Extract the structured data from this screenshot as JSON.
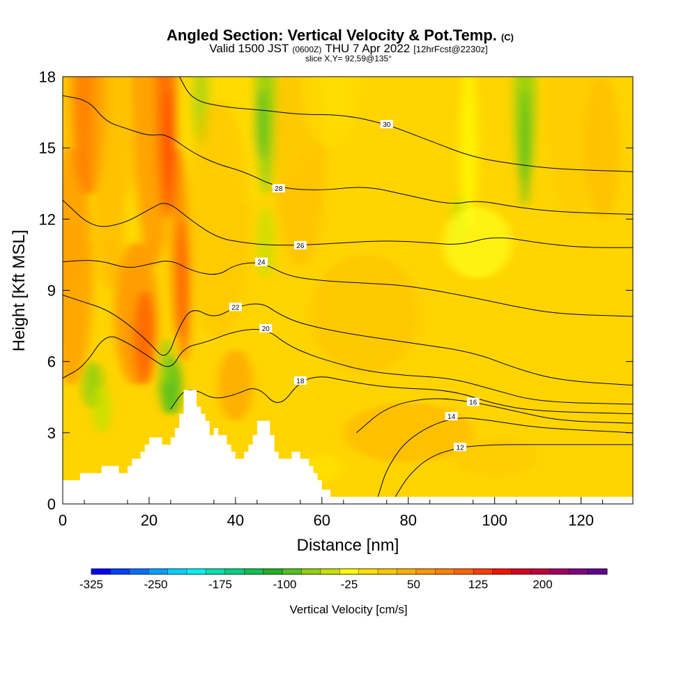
{
  "chart_data": {
    "type": "heatmap",
    "title_main": "Angled Section: Vertical Velocity & Pot.Temp.",
    "title_suffix": "(C)",
    "subtitle_a": "Valid 1500 JST",
    "subtitle_b": "(0600Z)",
    "subtitle_c": "THU 7 Apr 2022",
    "subtitle_d": "[12hrFcst@2230z]",
    "slice_note": "slice X,Y= 92,59@135°",
    "xlabel": "Distance [nm]",
    "ylabel": "Height [Kft MSL]",
    "xlim": [
      0,
      132
    ],
    "ylim": [
      0,
      18
    ],
    "xticks": [
      "0",
      "20",
      "40",
      "60",
      "80",
      "100",
      "120"
    ],
    "xtick_values": [
      0,
      20,
      40,
      60,
      80,
      100,
      120
    ],
    "yticks": [
      "0",
      "3",
      "6",
      "9",
      "12",
      "15",
      "18"
    ],
    "ytick_values": [
      0,
      3,
      6,
      9,
      12,
      15,
      18
    ],
    "colorbar": {
      "label": "Vertical Velocity [cm/s]",
      "tick_labels": [
        "-325",
        "-250",
        "-175",
        "-100",
        "-25",
        "50",
        "125",
        "200"
      ],
      "tick_values": [
        -325,
        -250,
        -175,
        -100,
        -25,
        50,
        125,
        200
      ],
      "min": -325,
      "max": 275,
      "colors": [
        "#0000ff",
        "#0040ff",
        "#0070ff",
        "#00a0ff",
        "#00d0ff",
        "#00f0f0",
        "#00e0b0",
        "#00d080",
        "#10c050",
        "#20b020",
        "#50c020",
        "#90d010",
        "#c8e000",
        "#ffff00",
        "#ffe000",
        "#ffc800",
        "#ffb000",
        "#ff9800",
        "#ff8000",
        "#ff6400",
        "#ff3c00",
        "#f01400",
        "#d80020",
        "#c00040",
        "#a00060",
        "#800080",
        "#600090"
      ]
    },
    "terrain": [
      [
        0,
        1
      ],
      [
        4,
        1
      ],
      [
        4,
        1.3
      ],
      [
        9,
        1.3
      ],
      [
        9,
        1.6
      ],
      [
        13,
        1.6
      ],
      [
        13,
        1.3
      ],
      [
        15,
        1.3
      ],
      [
        15,
        1.6
      ],
      [
        16,
        1.6
      ],
      [
        16,
        1.9
      ],
      [
        18,
        1.9
      ],
      [
        18,
        2.2
      ],
      [
        19,
        2.2
      ],
      [
        19,
        2.5
      ],
      [
        20,
        2.5
      ],
      [
        20,
        2.8
      ],
      [
        23,
        2.8
      ],
      [
        23,
        2.5
      ],
      [
        25,
        2.5
      ],
      [
        25,
        2.8
      ],
      [
        26,
        2.8
      ],
      [
        26,
        3.2
      ],
      [
        27,
        3.2
      ],
      [
        27,
        3.8
      ],
      [
        28,
        3.8
      ],
      [
        28,
        4.8
      ],
      [
        31,
        4.8
      ],
      [
        31,
        4.1
      ],
      [
        32,
        4.1
      ],
      [
        32,
        3.8
      ],
      [
        33,
        3.8
      ],
      [
        33,
        3.5
      ],
      [
        34,
        3.5
      ],
      [
        34,
        2.9
      ],
      [
        35,
        2.9
      ],
      [
        35,
        3.2
      ],
      [
        36,
        3.2
      ],
      [
        36,
        2.9
      ],
      [
        38,
        2.9
      ],
      [
        38,
        2.5
      ],
      [
        39,
        2.5
      ],
      [
        39,
        2.2
      ],
      [
        40,
        2.2
      ],
      [
        40,
        1.9
      ],
      [
        42,
        1.9
      ],
      [
        42,
        2.2
      ],
      [
        43,
        2.2
      ],
      [
        43,
        2.5
      ],
      [
        44,
        2.5
      ],
      [
        44,
        2.9
      ],
      [
        45,
        2.9
      ],
      [
        45,
        3.5
      ],
      [
        48,
        3.5
      ],
      [
        48,
        2.9
      ],
      [
        49,
        2.9
      ],
      [
        49,
        2.2
      ],
      [
        50,
        2.2
      ],
      [
        50,
        1.9
      ],
      [
        53,
        1.9
      ],
      [
        53,
        2.2
      ],
      [
        55,
        2.2
      ],
      [
        55,
        1.9
      ],
      [
        57,
        1.9
      ],
      [
        57,
        1.6
      ],
      [
        58,
        1.6
      ],
      [
        58,
        1.3
      ],
      [
        59,
        1.3
      ],
      [
        59,
        1
      ],
      [
        60,
        1
      ],
      [
        60,
        0.6
      ],
      [
        62,
        0.6
      ],
      [
        62,
        0.3
      ],
      [
        132,
        0.3
      ]
    ],
    "theta_contours": [
      {
        "label": "12",
        "points": [
          [
            77,
            0.3
          ],
          [
            80,
            1.2
          ],
          [
            85,
            2.0
          ],
          [
            92,
            2.4
          ],
          [
            100,
            2.5
          ],
          [
            110,
            2.5
          ],
          [
            132,
            2.5
          ]
        ]
      },
      {
        "label": "14",
        "points": [
          [
            73,
            0.3
          ],
          [
            75,
            1.5
          ],
          [
            80,
            2.8
          ],
          [
            90,
            3.7
          ],
          [
            100,
            3.5
          ],
          [
            110,
            3.2
          ],
          [
            132,
            3.0
          ]
        ]
      },
      {
        "label": "16",
        "points": [
          [
            68,
            3.0
          ],
          [
            75,
            4.1
          ],
          [
            85,
            4.5
          ],
          [
            95,
            4.3
          ],
          [
            105,
            3.9
          ],
          [
            115,
            3.5
          ],
          [
            132,
            3.4
          ]
        ]
      },
      {
        "label": "18",
        "points": [
          [
            25,
            4.0
          ],
          [
            28,
            4.8
          ],
          [
            31,
            4.8
          ],
          [
            35,
            4.4
          ],
          [
            40,
            4.6
          ],
          [
            45,
            5.0
          ],
          [
            50,
            4.0
          ],
          [
            55,
            5.2
          ],
          [
            60,
            5.4
          ],
          [
            65,
            5.2
          ],
          [
            75,
            4.9
          ],
          [
            90,
            4.8
          ],
          [
            100,
            4.2
          ],
          [
            110,
            3.9
          ],
          [
            132,
            3.8
          ]
        ]
      },
      {
        "label": "20",
        "points": [
          [
            0,
            5.3
          ],
          [
            5,
            5.8
          ],
          [
            10,
            7.2
          ],
          [
            15,
            6.8
          ],
          [
            20,
            6.2
          ],
          [
            25,
            5.6
          ],
          [
            28,
            6.6
          ],
          [
            33,
            6.8
          ],
          [
            40,
            7.3
          ],
          [
            47,
            7.4
          ],
          [
            52,
            6.7
          ],
          [
            57,
            6.3
          ],
          [
            62,
            6.0
          ],
          [
            70,
            5.6
          ],
          [
            80,
            5.4
          ],
          [
            90,
            5.3
          ],
          [
            100,
            4.8
          ],
          [
            110,
            4.3
          ],
          [
            132,
            4.2
          ]
        ]
      },
      {
        "label": "22",
        "points": [
          [
            0,
            8.8
          ],
          [
            5,
            8.5
          ],
          [
            10,
            8.2
          ],
          [
            15,
            7.6
          ],
          [
            20,
            6.8
          ],
          [
            24,
            6.0
          ],
          [
            27,
            7.5
          ],
          [
            30,
            8.3
          ],
          [
            35,
            7.8
          ],
          [
            40,
            8.3
          ],
          [
            46,
            8.5
          ],
          [
            50,
            8.0
          ],
          [
            55,
            7.6
          ],
          [
            65,
            7.2
          ],
          [
            80,
            6.8
          ],
          [
            95,
            6.4
          ],
          [
            105,
            5.7
          ],
          [
            115,
            5.2
          ],
          [
            132,
            5.0
          ]
        ]
      },
      {
        "label": "24",
        "points": [
          [
            0,
            10.2
          ],
          [
            8,
            10.3
          ],
          [
            15,
            9.9
          ],
          [
            20,
            10.1
          ],
          [
            25,
            10.3
          ],
          [
            30,
            9.8
          ],
          [
            36,
            9.6
          ],
          [
            40,
            10.1
          ],
          [
            46,
            10.2
          ],
          [
            52,
            9.6
          ],
          [
            60,
            9.4
          ],
          [
            70,
            9.3
          ],
          [
            80,
            9.2
          ],
          [
            95,
            8.7
          ],
          [
            105,
            8.3
          ],
          [
            115,
            8.0
          ],
          [
            132,
            7.9
          ]
        ]
      },
      {
        "label": "26",
        "points": [
          [
            0,
            12.8
          ],
          [
            7,
            11.6
          ],
          [
            14,
            11.8
          ],
          [
            20,
            12.4
          ],
          [
            24,
            12.8
          ],
          [
            30,
            11.9
          ],
          [
            36,
            11.2
          ],
          [
            42,
            11.0
          ],
          [
            48,
            10.9
          ],
          [
            55,
            10.9
          ],
          [
            65,
            11.0
          ],
          [
            75,
            11.1
          ],
          [
            85,
            11.0
          ],
          [
            92,
            10.9
          ],
          [
            100,
            11.3
          ],
          [
            110,
            11.0
          ],
          [
            120,
            10.8
          ],
          [
            132,
            10.8
          ]
        ]
      },
      {
        "label": "28",
        "points": [
          [
            0,
            17.2
          ],
          [
            6,
            17.0
          ],
          [
            10,
            16.1
          ],
          [
            15,
            15.8
          ],
          [
            20,
            15.5
          ],
          [
            24,
            15.6
          ],
          [
            30,
            14.8
          ],
          [
            36,
            14.3
          ],
          [
            42,
            14.0
          ],
          [
            50,
            13.3
          ],
          [
            60,
            13.2
          ],
          [
            70,
            13.4
          ],
          [
            80,
            13.0
          ],
          [
            90,
            12.6
          ],
          [
            96,
            12.8
          ],
          [
            105,
            12.5
          ],
          [
            115,
            12.3
          ],
          [
            132,
            12.2
          ]
        ]
      },
      {
        "label": "30",
        "points": [
          [
            27,
            18.0
          ],
          [
            30,
            17.0
          ],
          [
            38,
            16.7
          ],
          [
            46,
            16.6
          ],
          [
            55,
            16.4
          ],
          [
            65,
            16.4
          ],
          [
            75,
            16.0
          ],
          [
            85,
            15.3
          ],
          [
            95,
            14.6
          ],
          [
            105,
            14.3
          ],
          [
            115,
            14.1
          ],
          [
            132,
            14.0
          ]
        ]
      }
    ]
  }
}
